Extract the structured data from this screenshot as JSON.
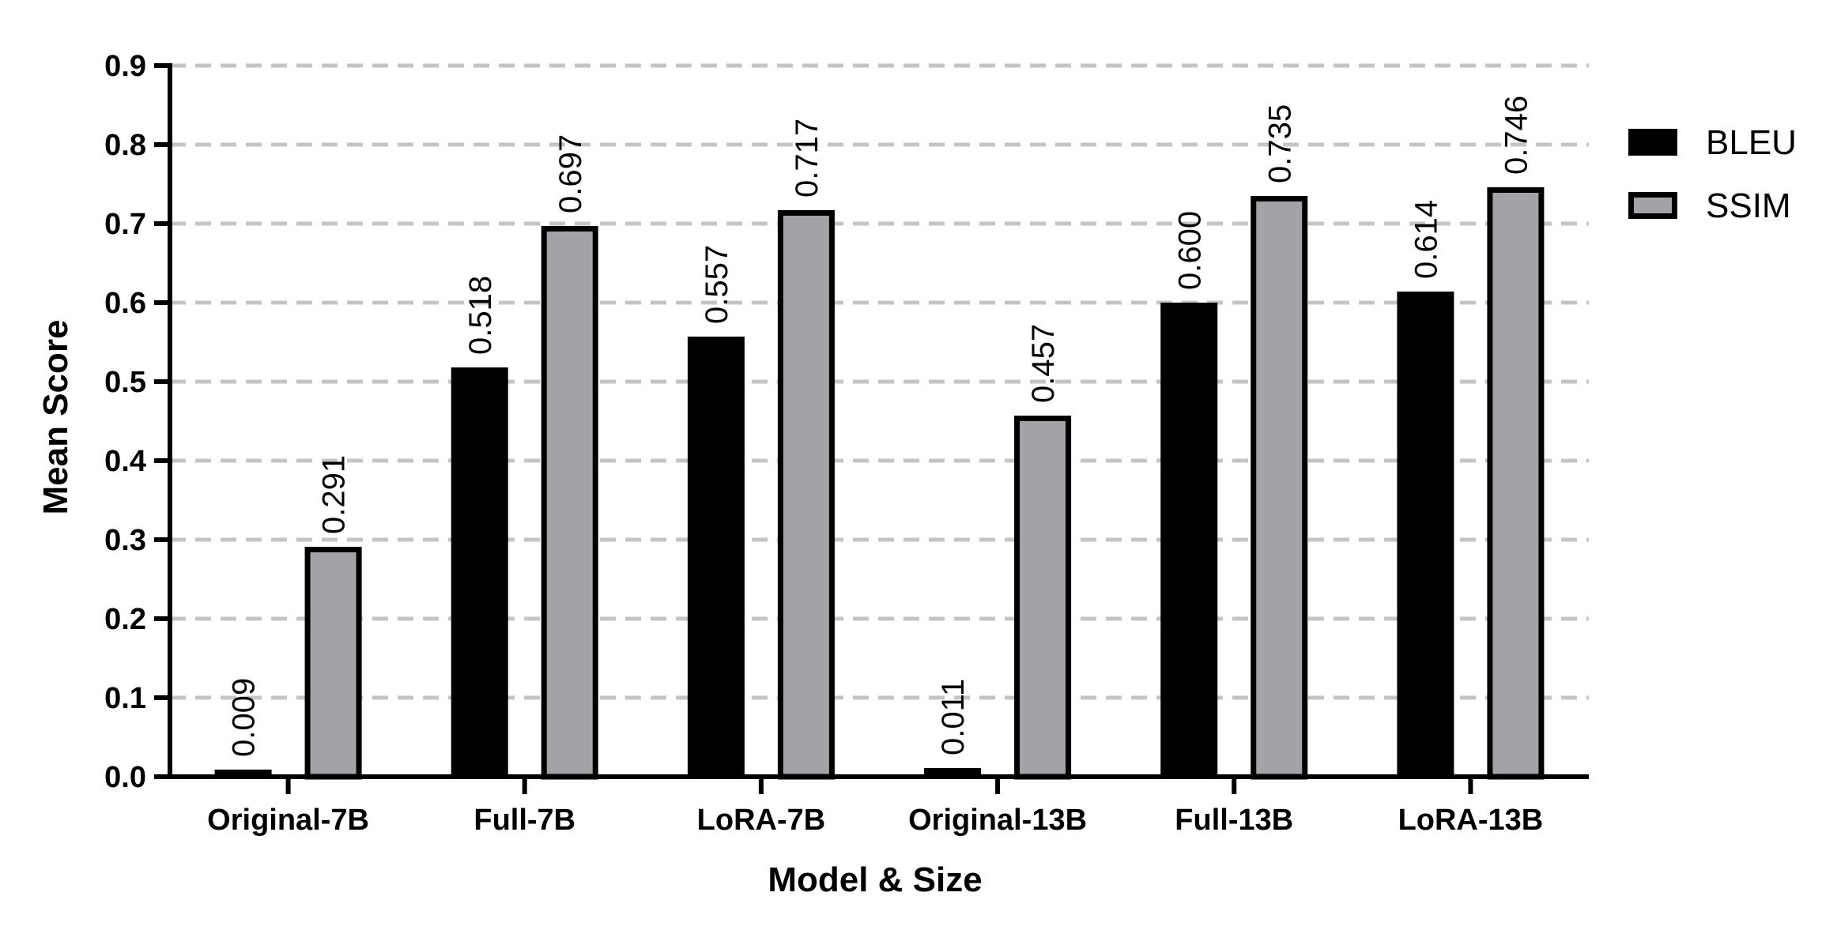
{
  "chart_data": {
    "type": "bar",
    "categories": [
      "Original-7B",
      "Full-7B",
      "LoRA-7B",
      "Original-13B",
      "Full-13B",
      "LoRA-13B"
    ],
    "series": [
      {
        "name": "BLEU",
        "values": [
          0.009,
          0.518,
          0.557,
          0.011,
          0.6,
          0.614
        ],
        "labels": [
          "0.009",
          "0.518",
          "0.557",
          "0.011",
          "0.600",
          "0.614"
        ]
      },
      {
        "name": "SSIM",
        "values": [
          0.291,
          0.697,
          0.717,
          0.457,
          0.735,
          0.746
        ],
        "labels": [
          "0.291",
          "0.697",
          "0.717",
          "0.457",
          "0.735",
          "0.746"
        ]
      }
    ],
    "colors": {
      "BLEU": "#000000",
      "SSIM": "#a3a3a7"
    },
    "xlabel": "Model & Size",
    "ylabel": "Mean Score",
    "ylim": [
      0,
      0.9
    ],
    "yticks": [
      "0.0",
      "0.1",
      "0.2",
      "0.3",
      "0.4",
      "0.5",
      "0.6",
      "0.7",
      "0.8",
      "0.9"
    ],
    "grid": "horizontal dashed",
    "legend_position": "right"
  }
}
